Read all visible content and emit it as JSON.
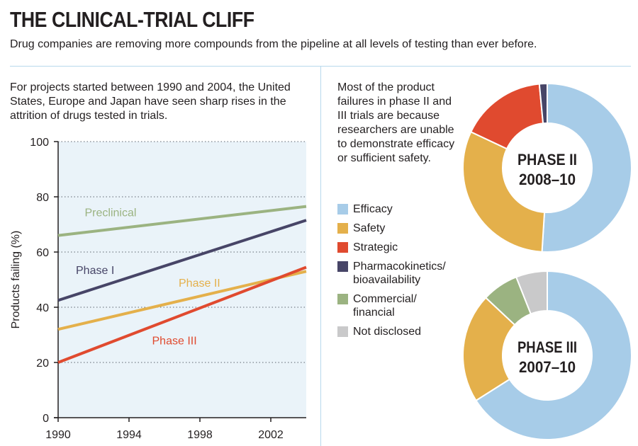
{
  "header": {
    "title": "THE CLINICAL-TRIAL CLIFF",
    "subtitle": "Drug companies are removing more compounds from the pipeline at all levels of testing than ever before."
  },
  "left_intro": "For projects started between 1990 and 2004, the United States, Europe and Japan have seen sharp rises in the attrition of drugs tested in trials.",
  "right_intro": "Most of the product failures in phase II and III trials are because researchers are unable to demonstrate efficacy or sufficient safety.",
  "legend": [
    {
      "lines": [
        "Efficacy"
      ],
      "color": "#a7cce8"
    },
    {
      "lines": [
        "Safety"
      ],
      "color": "#e4b04b"
    },
    {
      "lines": [
        "Strategic"
      ],
      "color": "#e04a2f"
    },
    {
      "lines": [
        "Pharmacokinetics/",
        "bioavailability"
      ],
      "color": "#474567"
    },
    {
      "lines": [
        "Commercial/",
        "financial"
      ],
      "color": "#9bb381"
    },
    {
      "lines": [
        "Not disclosed"
      ],
      "color": "#c9c9ca"
    }
  ],
  "chart_data": [
    {
      "type": "line",
      "title": "",
      "xlabel": "",
      "ylabel": "Products failing (%)",
      "xlim": [
        1990,
        2004
      ],
      "ylim": [
        0,
        100
      ],
      "yticks": [
        0,
        20,
        40,
        60,
        80,
        100
      ],
      "xticks": [
        1990,
        1994,
        1998,
        2002
      ],
      "grid": "horizontal dotted",
      "background": "#eaf3f9",
      "series": [
        {
          "name": "Preclinical",
          "color": "#9bb381",
          "x": [
            1990,
            2004
          ],
          "y": [
            66,
            76.5
          ],
          "label_at": [
            1991.5,
            73
          ]
        },
        {
          "name": "Phase I",
          "color": "#474567",
          "x": [
            1990,
            2004
          ],
          "y": [
            42.5,
            71.5
          ],
          "label_at": [
            1991,
            52
          ]
        },
        {
          "name": "Phase II",
          "color": "#e4b04b",
          "x": [
            1990,
            2004
          ],
          "y": [
            32,
            53
          ],
          "label_at": [
            1996.8,
            47.5
          ]
        },
        {
          "name": "Phase III",
          "color": "#e04a2f",
          "x": [
            1990,
            2004
          ],
          "y": [
            20,
            54.5
          ],
          "label_at": [
            1995.3,
            26.5
          ]
        }
      ]
    },
    {
      "type": "pie",
      "style": "donut",
      "title_lines": [
        "PHASE II",
        "2008–10"
      ],
      "slices": [
        {
          "label": "Efficacy",
          "value": 51,
          "color": "#a7cce8"
        },
        {
          "label": "Safety",
          "value": 31,
          "color": "#e4b04b"
        },
        {
          "label": "Strategic",
          "value": 16.5,
          "color": "#e04a2f"
        },
        {
          "label": "Pharmacokinetics/bioavailability",
          "value": 1.5,
          "color": "#474567"
        }
      ]
    },
    {
      "type": "pie",
      "style": "donut",
      "title_lines": [
        "PHASE III",
        "2007–10"
      ],
      "slices": [
        {
          "label": "Efficacy",
          "value": 66,
          "color": "#a7cce8"
        },
        {
          "label": "Safety",
          "value": 21,
          "color": "#e4b04b"
        },
        {
          "label": "Commercial/financial",
          "value": 7,
          "color": "#9bb381"
        },
        {
          "label": "Not disclosed",
          "value": 6,
          "color": "#c9c9ca"
        }
      ]
    }
  ]
}
